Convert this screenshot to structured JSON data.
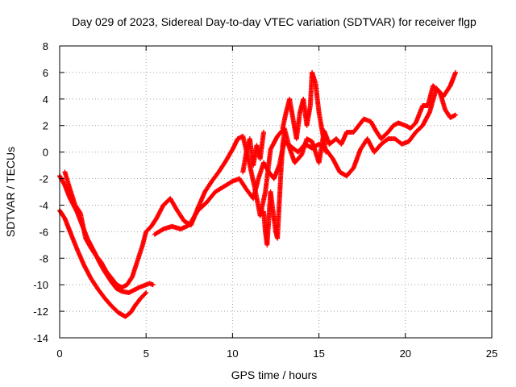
{
  "chart_data": {
    "type": "scatter",
    "title": "Day 029 of 2023, Sidereal Day-to-day VTEC variation (SDTVAR) for receiver flgp",
    "xlabel": "GPS time / hours",
    "ylabel": "SDTVAR / TECUs",
    "xlim": [
      0,
      25
    ],
    "ylim": [
      -14,
      8
    ],
    "xticks": [
      0,
      5,
      10,
      15,
      20,
      25
    ],
    "yticks": [
      -14,
      -12,
      -10,
      -8,
      -6,
      -4,
      -2,
      0,
      2,
      4,
      6,
      8
    ],
    "grid": true,
    "marker": "plus",
    "color": "#ff0000",
    "series": [
      {
        "x": [
          0.0,
          0.3,
          0.6,
          1.0,
          1.3,
          1.6,
          2.0,
          2.3,
          2.6,
          3.0,
          3.3,
          3.6,
          4.0,
          4.3,
          4.6,
          5.0,
          5.2,
          5.4
        ],
        "y": [
          -1.8,
          -2.5,
          -3.5,
          -4.5,
          -5.5,
          -6.5,
          -7.5,
          -8.3,
          -9.0,
          -9.8,
          -10.3,
          -10.5,
          -10.6,
          -10.4,
          -10.2,
          -10.0,
          -9.9,
          -10.0
        ]
      },
      {
        "x": [
          0.0,
          0.3,
          0.6,
          1.0,
          1.4,
          1.8,
          2.2,
          2.6,
          3.0,
          3.4,
          3.8,
          4.1,
          4.4,
          4.7,
          5.0
        ],
        "y": [
          -4.4,
          -5.0,
          -6.0,
          -7.3,
          -8.5,
          -9.5,
          -10.3,
          -11.0,
          -11.6,
          -12.1,
          -12.4,
          -12.1,
          -11.5,
          -11.0,
          -10.6
        ]
      },
      {
        "x": [
          0.3,
          0.6,
          0.9,
          1.2,
          1.5,
          1.8,
          2.1,
          2.4,
          2.7,
          3.0,
          3.3,
          3.6,
          3.9,
          4.2,
          4.5,
          4.8,
          5.0,
          5.3,
          5.6,
          6.0,
          6.4,
          6.8,
          7.2,
          7.6,
          8.0,
          8.4,
          8.8,
          9.2,
          9.6,
          10.0,
          10.3,
          10.6,
          11.0,
          11.3,
          11.6,
          11.9,
          12.2,
          12.6,
          13.0,
          13.3,
          13.6,
          14.0,
          14.3,
          14.6,
          15.0,
          15.3,
          15.6,
          16.0,
          16.3,
          16.6,
          17.0,
          17.3,
          17.6,
          18.0,
          18.3,
          18.6,
          19.0,
          19.3,
          19.6,
          20.0,
          20.3,
          20.6,
          21.0,
          21.3,
          21.6,
          22.0,
          22.3,
          22.6,
          22.9
        ],
        "y": [
          -1.5,
          -2.8,
          -4.0,
          -4.6,
          -6.5,
          -7.2,
          -7.8,
          -8.3,
          -9.0,
          -9.5,
          -10.0,
          -10.2,
          -10.0,
          -9.4,
          -8.2,
          -7.0,
          -6.0,
          -5.6,
          -5.0,
          -4.0,
          -3.5,
          -4.4,
          -5.2,
          -5.5,
          -4.2,
          -3.0,
          -2.2,
          -1.5,
          -0.7,
          0.2,
          1.0,
          1.2,
          -1.0,
          -2.8,
          -4.8,
          -3.0,
          0.2,
          1.2,
          1.8,
          0.3,
          -0.8,
          -0.2,
          1.0,
          0.8,
          -0.8,
          1.6,
          0.6,
          1.0,
          0.6,
          1.5,
          1.5,
          2.0,
          2.5,
          2.3,
          1.6,
          1.0,
          1.5,
          2.0,
          2.2,
          2.0,
          1.8,
          2.2,
          3.5,
          3.5,
          5.0,
          4.5,
          3.2,
          2.6,
          2.8
        ]
      },
      {
        "x": [
          5.5,
          6.0,
          6.5,
          7.0,
          7.5,
          8.0,
          8.5,
          9.0,
          9.5,
          10.0,
          10.4,
          10.8,
          11.2,
          11.5,
          11.8,
          12.1,
          12.4,
          12.7,
          13.0,
          13.4,
          13.8,
          14.2,
          14.6,
          15.0,
          15.4,
          15.8,
          16.2,
          16.6,
          17.0,
          17.4,
          17.8,
          18.2,
          18.6,
          19.0,
          19.4,
          19.8,
          20.2,
          20.6,
          21.0,
          21.4,
          21.8,
          22.2,
          22.6,
          22.9
        ],
        "y": [
          -6.2,
          -5.8,
          -5.6,
          -5.8,
          -5.5,
          -4.4,
          -3.8,
          -3.0,
          -2.6,
          -2.2,
          -2.0,
          -2.8,
          -3.5,
          -2.0,
          -0.8,
          -1.5,
          -2.0,
          -1.0,
          0.8,
          0.4,
          0.0,
          0.6,
          0.3,
          0.6,
          0.2,
          -0.5,
          -1.5,
          -1.8,
          -1.2,
          0.2,
          1.0,
          0.0,
          0.6,
          1.0,
          1.0,
          0.6,
          0.8,
          1.5,
          2.0,
          3.0,
          4.8,
          4.2,
          5.0,
          6.0
        ]
      },
      {
        "x": [
          11.8,
          11.9,
          12.0,
          12.1,
          12.2,
          12.3,
          12.5,
          12.6,
          12.7,
          12.8,
          12.9,
          13.0
        ],
        "y": [
          -4.5,
          -6.0,
          -7.0,
          -5.0,
          -3.0,
          -4.0,
          -6.0,
          -6.5,
          -4.0,
          -1.5,
          0.5,
          1.5
        ]
      },
      {
        "x": [
          12.9,
          13.1,
          13.3,
          13.5,
          13.7,
          13.9,
          14.1,
          14.3,
          14.5,
          14.6,
          14.8,
          15.0,
          15.2,
          15.4
        ],
        "y": [
          1.8,
          3.0,
          4.0,
          2.5,
          1.0,
          3.0,
          4.0,
          2.0,
          3.5,
          6.0,
          5.2,
          3.0,
          1.5,
          0.0
        ]
      },
      {
        "x": [
          10.6,
          10.8,
          11.0,
          11.2,
          11.4,
          11.6,
          11.8
        ],
        "y": [
          -1.5,
          0.0,
          1.0,
          -1.0,
          0.5,
          -0.5,
          1.5
        ]
      }
    ]
  }
}
